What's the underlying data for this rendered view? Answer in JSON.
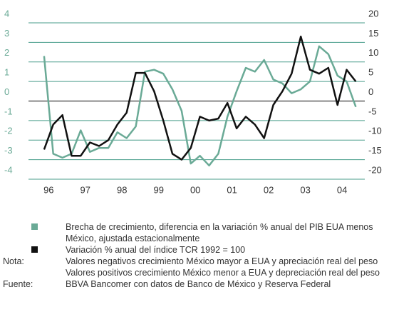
{
  "chart_data": {
    "type": "line",
    "x": [
      1995.875,
      1996.125,
      1996.375,
      1996.625,
      1996.875,
      1997.125,
      1997.375,
      1997.625,
      1997.875,
      1998.125,
      1998.375,
      1998.625,
      1998.875,
      1999.125,
      1999.375,
      1999.625,
      1999.875,
      2000.125,
      2000.375,
      2000.625,
      2000.875,
      2001.125,
      2001.375,
      2001.625,
      2001.875,
      2002.125,
      2002.375,
      2002.625,
      2002.875,
      2003.125,
      2003.375,
      2003.625,
      2003.875,
      2004.125,
      2004.375
    ],
    "series": [
      {
        "name": "Brecha de crecimiento, diferencia en la variación % anual del PIB EUA menos México, ajustada estacionalmente",
        "color": "#6aaa96",
        "values": [
          2.3,
          -2.7,
          -2.9,
          -2.7,
          -1.5,
          -2.6,
          -2.4,
          -2.4,
          -1.6,
          -1.9,
          -1.3,
          1.5,
          1.6,
          1.4,
          0.6,
          -0.5,
          -3.2,
          -2.8,
          -3.3,
          -2.7,
          -0.8,
          0.5,
          1.7,
          1.5,
          2.1,
          1.1,
          0.9,
          0.4,
          0.6,
          1.0,
          2.8,
          2.4,
          1.3,
          1.0,
          -0.3
        ]
      },
      {
        "name": "Variación % anual del índice TCR 1992 = 100",
        "color": "#111111",
        "axis": "y2",
        "values": [
          -12.4,
          -6,
          -3.6,
          -14,
          -14,
          -10.6,
          -11.5,
          -10,
          -6,
          -3,
          7.2,
          7.2,
          2.5,
          -5,
          -13.5,
          -15,
          -12,
          -4,
          -5,
          -4.5,
          -0.5,
          -7,
          -4,
          -6,
          -9.5,
          -1,
          2.5,
          7,
          16.5,
          8,
          7,
          8.5,
          -1,
          8,
          5
        ]
      }
    ],
    "xlim": [
      1995.45,
      2004.62
    ],
    "xticks": [
      {
        "value": 1996,
        "label": "96"
      },
      {
        "value": 1997,
        "label": "97"
      },
      {
        "value": 1998,
        "label": "98"
      },
      {
        "value": 1999,
        "label": "99"
      },
      {
        "value": 2000,
        "label": "00"
      },
      {
        "value": 2001,
        "label": "01"
      },
      {
        "value": 2002,
        "label": "02"
      },
      {
        "value": 2003,
        "label": "03"
      },
      {
        "value": 2004,
        "label": "04"
      }
    ],
    "ylim": [
      -4,
      4
    ],
    "yticks": [
      -4,
      -3,
      -2,
      -1,
      0,
      1,
      2,
      3,
      4
    ],
    "y2lim": [
      -20,
      20
    ],
    "y2ticks": [
      -20,
      -15,
      -10,
      -5,
      0,
      5,
      10,
      15,
      20
    ],
    "grid": true,
    "grid_color": "#4a9e8b",
    "zero_line_color": "#000000",
    "ytick_color": "#6aaa96",
    "y2tick_color": "#333333",
    "notes": [
      {
        "label": "Nota:",
        "lines": [
          "Valores negativos crecimiento México mayor a EUA y apreciación real del peso",
          "Valores positivos crecimiento México menor a EUA y depreciación real del peso"
        ]
      },
      {
        "label": "Fuente:",
        "lines": [
          "BBVA Bancomer con datos de Banco de México y Reserva Federal"
        ]
      }
    ]
  }
}
